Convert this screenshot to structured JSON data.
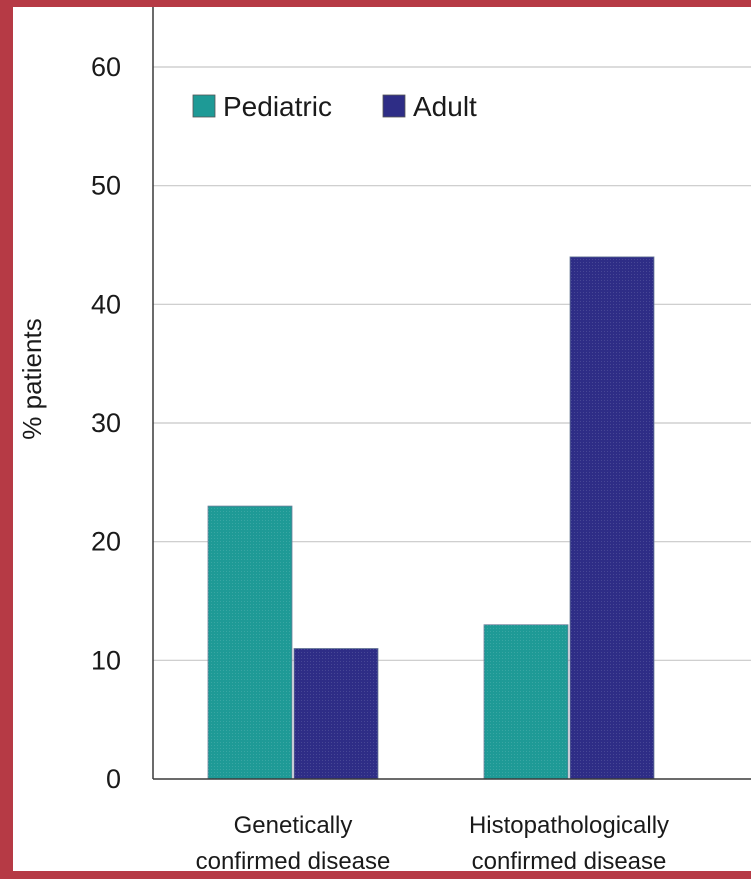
{
  "chart_data": {
    "type": "bar",
    "categories": [
      [
        "Genetically",
        "confirmed disease"
      ],
      [
        "Histopathologically",
        "confirmed disease"
      ]
    ],
    "series": [
      {
        "name": "Pediatric",
        "values": [
          23,
          13
        ],
        "color": "#1e9a96"
      },
      {
        "name": "Adult",
        "values": [
          11,
          44
        ],
        "color": "#2e2d86"
      }
    ],
    "ylabel": "% patients",
    "xlabel": "",
    "title": "",
    "ylim": [
      0,
      60
    ],
    "yticks": [
      0,
      10,
      20,
      30,
      40,
      50,
      60
    ],
    "grid": true,
    "legend_position": "top-left"
  }
}
